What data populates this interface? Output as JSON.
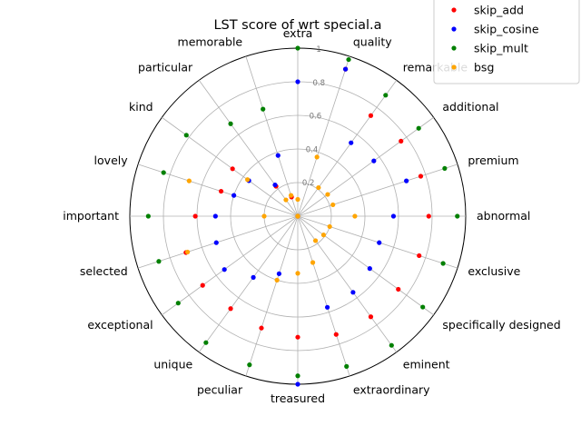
{
  "chart_data": {
    "type": "scatter",
    "projection": "polar",
    "title": "LST score of wrt special.a",
    "categories": [
      "abnormal",
      "premium",
      "additional",
      "remarkable",
      "quality",
      "extra",
      "memorable",
      "particular",
      "kind",
      "lovely",
      "important",
      "selected",
      "exceptional",
      "unique",
      "peculiar",
      "treasured",
      "extraordinary",
      "eminent",
      "specifically designed",
      "exclusive"
    ],
    "rlim": [
      0,
      1
    ],
    "rticks": [
      0.2,
      0.4,
      0.6,
      0.8,
      1
    ],
    "rtick_labels": [
      "0.2",
      "0.4",
      "0.6",
      "0.8",
      "1"
    ],
    "grid": true,
    "legend_position": "upper-right",
    "series": [
      {
        "name": "skip_add",
        "color": "#ff0000",
        "values": [
          0.78,
          0.77,
          0.76,
          0.74,
          0.92,
          0.0,
          0.12,
          0.22,
          0.48,
          0.48,
          0.61,
          0.7,
          0.7,
          0.68,
          0.7,
          0.72,
          0.74,
          0.74,
          0.74,
          0.76
        ]
      },
      {
        "name": "skip_cosine",
        "color": "#0000ff",
        "values": [
          0.57,
          0.68,
          0.56,
          0.54,
          0.92,
          0.8,
          0.38,
          0.23,
          0.36,
          0.4,
          0.49,
          0.51,
          0.54,
          0.45,
          0.36,
          1.0,
          0.57,
          0.56,
          0.53,
          0.51
        ]
      },
      {
        "name": "skip_mult",
        "color": "#008000",
        "values": [
          0.95,
          0.92,
          0.89,
          0.89,
          0.98,
          1.0,
          0.67,
          0.68,
          0.82,
          0.84,
          0.89,
          0.87,
          0.88,
          0.93,
          0.93,
          0.95,
          0.94,
          0.95,
          0.92,
          0.91
        ]
      },
      {
        "name": "bsg",
        "color": "#ffa500",
        "values": [
          0.34,
          0.22,
          0.22,
          0.21,
          0.37,
          0.1,
          0.13,
          0.12,
          0.37,
          0.68,
          0.2,
          0.69,
          0.0,
          0.0,
          0.4,
          0.34,
          0.29,
          0.18,
          0.19,
          0.2
        ]
      }
    ]
  }
}
